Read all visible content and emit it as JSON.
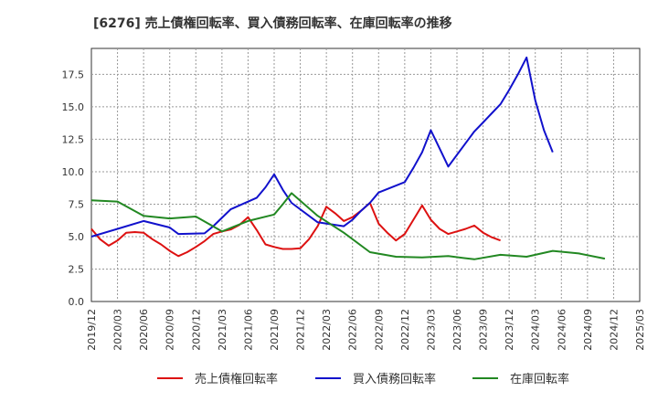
{
  "chart_data": {
    "type": "line",
    "title": "[6276]  売上債権回転率、買入債務回転率、在庫回転率の推移",
    "xlabel": "",
    "ylabel": "",
    "ylim": [
      0,
      19.5
    ],
    "yticks": [
      0.0,
      2.5,
      5.0,
      7.5,
      10.0,
      12.5,
      15.0,
      17.5
    ],
    "ytick_labels": [
      "0.0",
      "2.5",
      "5.0",
      "7.5",
      "10.0",
      "12.5",
      "15.0",
      "17.5"
    ],
    "x_ticks": [
      "2019/12",
      "2020/03",
      "2020/06",
      "2020/09",
      "2020/12",
      "2021/03",
      "2021/06",
      "2021/09",
      "2021/12",
      "2022/03",
      "2022/06",
      "2022/09",
      "2022/12",
      "2023/03",
      "2023/06",
      "2023/09",
      "2023/12",
      "2024/03",
      "2024/06",
      "2024/09",
      "2024/12",
      "2025/03"
    ],
    "grid": true,
    "legend_position": "bottom",
    "series": [
      {
        "name": "売上債権回転率",
        "color": "#dd1111",
        "points": [
          [
            0,
            5.6
          ],
          [
            1,
            4.8
          ],
          [
            2,
            4.3
          ],
          [
            3,
            4.7
          ],
          [
            4,
            5.3
          ],
          [
            5,
            5.35
          ],
          [
            6,
            5.3
          ],
          [
            7,
            4.8
          ],
          [
            8,
            4.4
          ],
          [
            9,
            3.9
          ],
          [
            10,
            3.5
          ],
          [
            11,
            3.8
          ],
          [
            12,
            4.2
          ],
          [
            13,
            4.65
          ],
          [
            14,
            5.2
          ],
          [
            15,
            5.4
          ],
          [
            16,
            5.55
          ],
          [
            17,
            5.9
          ],
          [
            18,
            6.5
          ],
          [
            19,
            5.5
          ],
          [
            20,
            4.4
          ],
          [
            21,
            4.2
          ],
          [
            22,
            4.05
          ],
          [
            23,
            4.05
          ],
          [
            24,
            4.1
          ],
          [
            25,
            4.8
          ],
          [
            26,
            5.8
          ],
          [
            27,
            7.3
          ],
          [
            28,
            6.8
          ],
          [
            29,
            6.2
          ],
          [
            30,
            6.5
          ],
          [
            31,
            7.0
          ],
          [
            32,
            7.6
          ],
          [
            33,
            6.0
          ],
          [
            34,
            5.3
          ],
          [
            35,
            4.7
          ],
          [
            36,
            5.2
          ],
          [
            37,
            6.3
          ],
          [
            38,
            7.4
          ],
          [
            39,
            6.3
          ],
          [
            40,
            5.6
          ],
          [
            41,
            5.2
          ],
          [
            42,
            5.4
          ],
          [
            43,
            5.6
          ],
          [
            44,
            5.85
          ],
          [
            45,
            5.3
          ],
          [
            46,
            4.95
          ],
          [
            47,
            4.7
          ]
        ]
      },
      {
        "name": "買入債務回転率",
        "color": "#1111cc",
        "points": [
          [
            0,
            5.0
          ],
          [
            3,
            5.6
          ],
          [
            6,
            6.2
          ],
          [
            9,
            5.7
          ],
          [
            10,
            5.2
          ],
          [
            13,
            5.25
          ],
          [
            14,
            5.8
          ],
          [
            16,
            7.1
          ],
          [
            19,
            8.0
          ],
          [
            20,
            8.8
          ],
          [
            21,
            9.8
          ],
          [
            22,
            8.6
          ],
          [
            23,
            7.6
          ],
          [
            26,
            6.1
          ],
          [
            29,
            5.8
          ],
          [
            30,
            6.3
          ],
          [
            31,
            7.0
          ],
          [
            32,
            7.6
          ],
          [
            33,
            8.4
          ],
          [
            36,
            9.2
          ],
          [
            37,
            10.3
          ],
          [
            38,
            11.5
          ],
          [
            39,
            13.2
          ],
          [
            40,
            11.8
          ],
          [
            41,
            10.4
          ],
          [
            42,
            11.3
          ],
          [
            43,
            12.2
          ],
          [
            44,
            13.1
          ],
          [
            45,
            13.8
          ],
          [
            46,
            14.5
          ],
          [
            47,
            15.2
          ],
          [
            48,
            16.3
          ],
          [
            49,
            17.5
          ],
          [
            50,
            18.8
          ],
          [
            51,
            15.5
          ],
          [
            52,
            13.2
          ],
          [
            53,
            11.5
          ]
        ]
      },
      {
        "name": "在庫回転率",
        "color": "#228822",
        "points": [
          [
            0,
            7.8
          ],
          [
            3,
            7.7
          ],
          [
            6,
            6.6
          ],
          [
            9,
            6.4
          ],
          [
            12,
            6.55
          ],
          [
            15,
            5.4
          ],
          [
            18,
            6.2
          ],
          [
            21,
            6.7
          ],
          [
            22,
            7.5
          ],
          [
            23,
            8.35
          ],
          [
            26,
            6.6
          ],
          [
            29,
            5.3
          ],
          [
            32,
            3.8
          ],
          [
            35,
            3.45
          ],
          [
            38,
            3.4
          ],
          [
            41,
            3.5
          ],
          [
            44,
            3.25
          ],
          [
            47,
            3.6
          ],
          [
            50,
            3.45
          ],
          [
            53,
            3.9
          ],
          [
            56,
            3.7
          ],
          [
            59,
            3.3
          ]
        ]
      }
    ]
  }
}
